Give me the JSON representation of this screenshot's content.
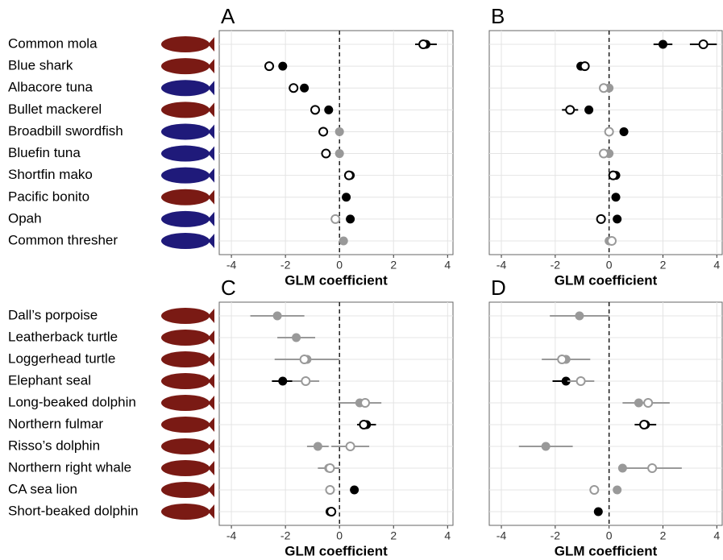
{
  "chart_data": [
    {
      "type": "dot",
      "title": "A",
      "xlabel": "GLM coefficient",
      "categories": [
        "Common mola",
        "Blue shark",
        "Albacore tuna",
        "Bullet mackerel",
        "Broadbill swordfish",
        "Bluefin tuna",
        "Shortfin mako",
        "Pacific bonito",
        "Opah",
        "Common thresher"
      ],
      "xlim": [
        -4.45,
        4.2
      ],
      "xticks": [
        -4,
        -2,
        0,
        2,
        4
      ],
      "grid": true,
      "vline": 0,
      "series": [
        {
          "marker": "filled",
          "values": [
            3.2,
            -2.1,
            -1.3,
            -0.4,
            0,
            0,
            0.4,
            0.25,
            0.4,
            0.15
          ],
          "errors": [
            0.4,
            null,
            null,
            null,
            null,
            null,
            null,
            null,
            null,
            null
          ],
          "colors": [
            "#000000",
            "#000000",
            "#000000",
            "#000000",
            "#999999",
            "#999999",
            "#000000",
            "#000000",
            "#000000",
            "#999999"
          ]
        },
        {
          "marker": "open",
          "values": [
            3.1,
            -2.6,
            -1.7,
            -0.9,
            -0.6,
            -0.5,
            0.35,
            null,
            -0.15,
            null
          ],
          "errors": [
            null,
            null,
            null,
            null,
            null,
            null,
            null,
            null,
            null,
            null
          ],
          "colors": [
            "#000000",
            "#000000",
            "#000000",
            "#000000",
            "#000000",
            "#000000",
            "#000000",
            null,
            "#999999",
            null
          ]
        }
      ]
    },
    {
      "type": "dot",
      "title": "B",
      "xlabel": "GLM coefficient",
      "xlim": [
        -4.45,
        4.2
      ],
      "xticks": [
        -4,
        -2,
        0,
        2,
        4
      ],
      "grid": true,
      "vline": 0,
      "series": [
        {
          "marker": "filled",
          "values": [
            2.0,
            -1.05,
            0,
            -0.75,
            0.55,
            0,
            0.25,
            0.25,
            0.3,
            0
          ],
          "errors": [
            0.35,
            null,
            null,
            null,
            null,
            null,
            null,
            null,
            null,
            null
          ],
          "colors": [
            "#000000",
            "#000000",
            "#999999",
            "#000000",
            "#000000",
            "#999999",
            "#000000",
            "#000000",
            "#000000",
            "#999999"
          ]
        },
        {
          "marker": "open",
          "values": [
            3.5,
            -0.9,
            -0.2,
            -1.45,
            0,
            -0.2,
            0.15,
            null,
            -0.3,
            0.1
          ],
          "errors": [
            0.5,
            null,
            null,
            0.3,
            null,
            null,
            null,
            null,
            null,
            null
          ],
          "colors": [
            "#000000",
            "#000000",
            "#999999",
            "#000000",
            "#999999",
            "#999999",
            "#000000",
            null,
            "#000000",
            "#999999"
          ]
        }
      ]
    },
    {
      "type": "dot",
      "title": "C",
      "xlabel": "GLM coefficient",
      "categories": [
        "Dall’s porpoise",
        "Leatherback turtle",
        "Loggerhead turtle",
        "Elephant seal",
        "Long-beaked dolphin",
        "Northern fulmar",
        "Risso’s dolphin",
        "Northern right whale",
        "CA sea lion",
        "Short-beaked dolphin"
      ],
      "xlim": [
        -4.45,
        4.2
      ],
      "xticks": [
        -4,
        -2,
        0,
        2,
        4
      ],
      "grid": true,
      "vline": 0,
      "series": [
        {
          "marker": "filled",
          "values": [
            -2.3,
            -1.6,
            -1.2,
            -2.1,
            0.75,
            1.0,
            -0.8,
            -0.4,
            0.55,
            -0.35
          ],
          "errors": [
            1.0,
            0.7,
            1.2,
            0.4,
            0.8,
            0.35,
            0.4,
            0.4,
            null,
            null
          ],
          "colors": [
            "#999999",
            "#999999",
            "#999999",
            "#000000",
            "#999999",
            "#000000",
            "#999999",
            "#999999",
            "#000000",
            "#000000"
          ]
        },
        {
          "marker": "open",
          "values": [
            null,
            null,
            -1.3,
            -1.25,
            0.95,
            0.9,
            0.4,
            -0.35,
            -0.35,
            -0.3
          ],
          "errors": [
            null,
            null,
            null,
            0.5,
            null,
            null,
            0.7,
            null,
            null,
            null
          ],
          "colors": [
            null,
            null,
            "#999999",
            "#999999",
            "#999999",
            "#000000",
            "#999999",
            "#999999",
            "#999999",
            "#000000"
          ]
        }
      ]
    },
    {
      "type": "dot",
      "title": "D",
      "xlabel": "GLM coefficient",
      "xlim": [
        -4.45,
        4.2
      ],
      "xticks": [
        -4,
        -2,
        0,
        2,
        4
      ],
      "grid": true,
      "vline": 0,
      "series": [
        {
          "marker": "filled",
          "values": [
            -1.1,
            null,
            -1.6,
            -1.6,
            1.1,
            1.35,
            -2.35,
            0.5,
            0.3,
            -0.4
          ],
          "errors": [
            1.1,
            null,
            0.9,
            0.5,
            0.6,
            0.4,
            1.0,
            null,
            null,
            null
          ],
          "colors": [
            "#999999",
            null,
            "#999999",
            "#000000",
            "#999999",
            "#000000",
            "#999999",
            "#999999",
            "#999999",
            "#000000"
          ]
        },
        {
          "marker": "open",
          "values": [
            null,
            null,
            -1.75,
            -1.05,
            1.45,
            1.3,
            null,
            1.6,
            -0.55,
            null
          ],
          "errors": [
            null,
            null,
            null,
            0.5,
            0.8,
            null,
            null,
            1.1,
            null,
            null
          ],
          "colors": [
            null,
            null,
            "#999999",
            "#999999",
            "#999999",
            "#000000",
            null,
            "#999999",
            "#999999",
            null
          ]
        }
      ]
    }
  ]
}
